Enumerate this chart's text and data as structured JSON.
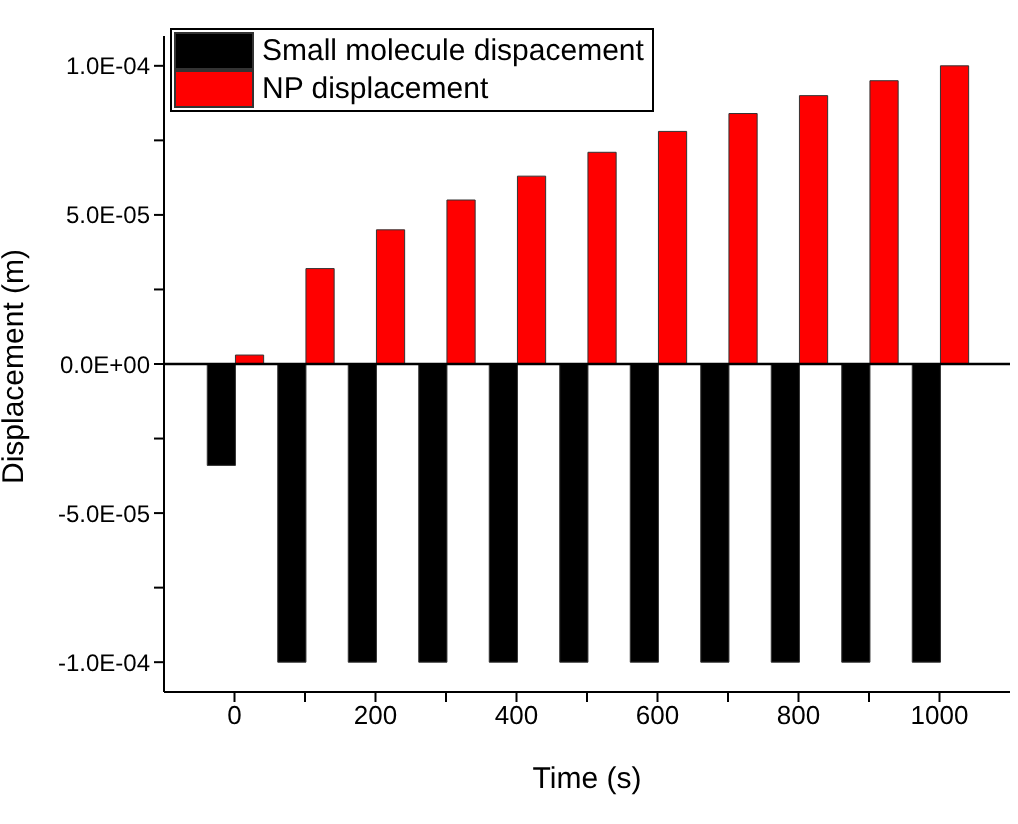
{
  "chart_data": {
    "type": "bar",
    "xlabel": "Time (s)",
    "ylabel": "Displacement (m)",
    "x": [
      0,
      100,
      200,
      300,
      400,
      500,
      600,
      700,
      800,
      900,
      1000
    ],
    "series": [
      {
        "name": "Small molecule dispacement",
        "color": "#000000",
        "values": [
          -3.4e-05,
          -0.0001,
          -0.0001,
          -0.0001,
          -0.0001,
          -0.0001,
          -0.0001,
          -0.0001,
          -0.0001,
          -0.0001,
          -0.0001
        ]
      },
      {
        "name": "NP displacement",
        "color": "#ff0000",
        "values": [
          3e-06,
          3.2e-05,
          4.5e-05,
          5.5e-05,
          6.3e-05,
          7.1e-05,
          7.8e-05,
          8.4e-05,
          9e-05,
          9.5e-05,
          0.0001
        ]
      }
    ],
    "xlim": [
      -100,
      1100
    ],
    "xticks": [
      0,
      {
        "value": 100,
        "label": null
      },
      200,
      {
        "value": 300,
        "label": null
      },
      400,
      {
        "value": 500,
        "label": null
      },
      600,
      {
        "value": 700,
        "label": null
      },
      800,
      {
        "value": 900,
        "label": null
      },
      1000
    ],
    "ylim": [
      -0.00011,
      0.00011
    ],
    "yticks": [
      {
        "value": -0.0001,
        "label": "-1.0E-04"
      },
      {
        "value": -7.5e-05,
        "label": null
      },
      {
        "value": -5e-05,
        "label": "-5.0E-05"
      },
      {
        "value": -2.5e-05,
        "label": null
      },
      {
        "value": 0,
        "label": "0.0E+00"
      },
      {
        "value": 2.5e-05,
        "label": null
      },
      {
        "value": 5e-05,
        "label": "5.0E-05"
      },
      {
        "value": 7.5e-05,
        "label": null
      },
      {
        "value": 0.0001,
        "label": "1.0E-04"
      }
    ],
    "ref_lines": [
      {
        "axis": "y",
        "value": 0,
        "color": "#000000"
      }
    ],
    "legend": "top left"
  }
}
